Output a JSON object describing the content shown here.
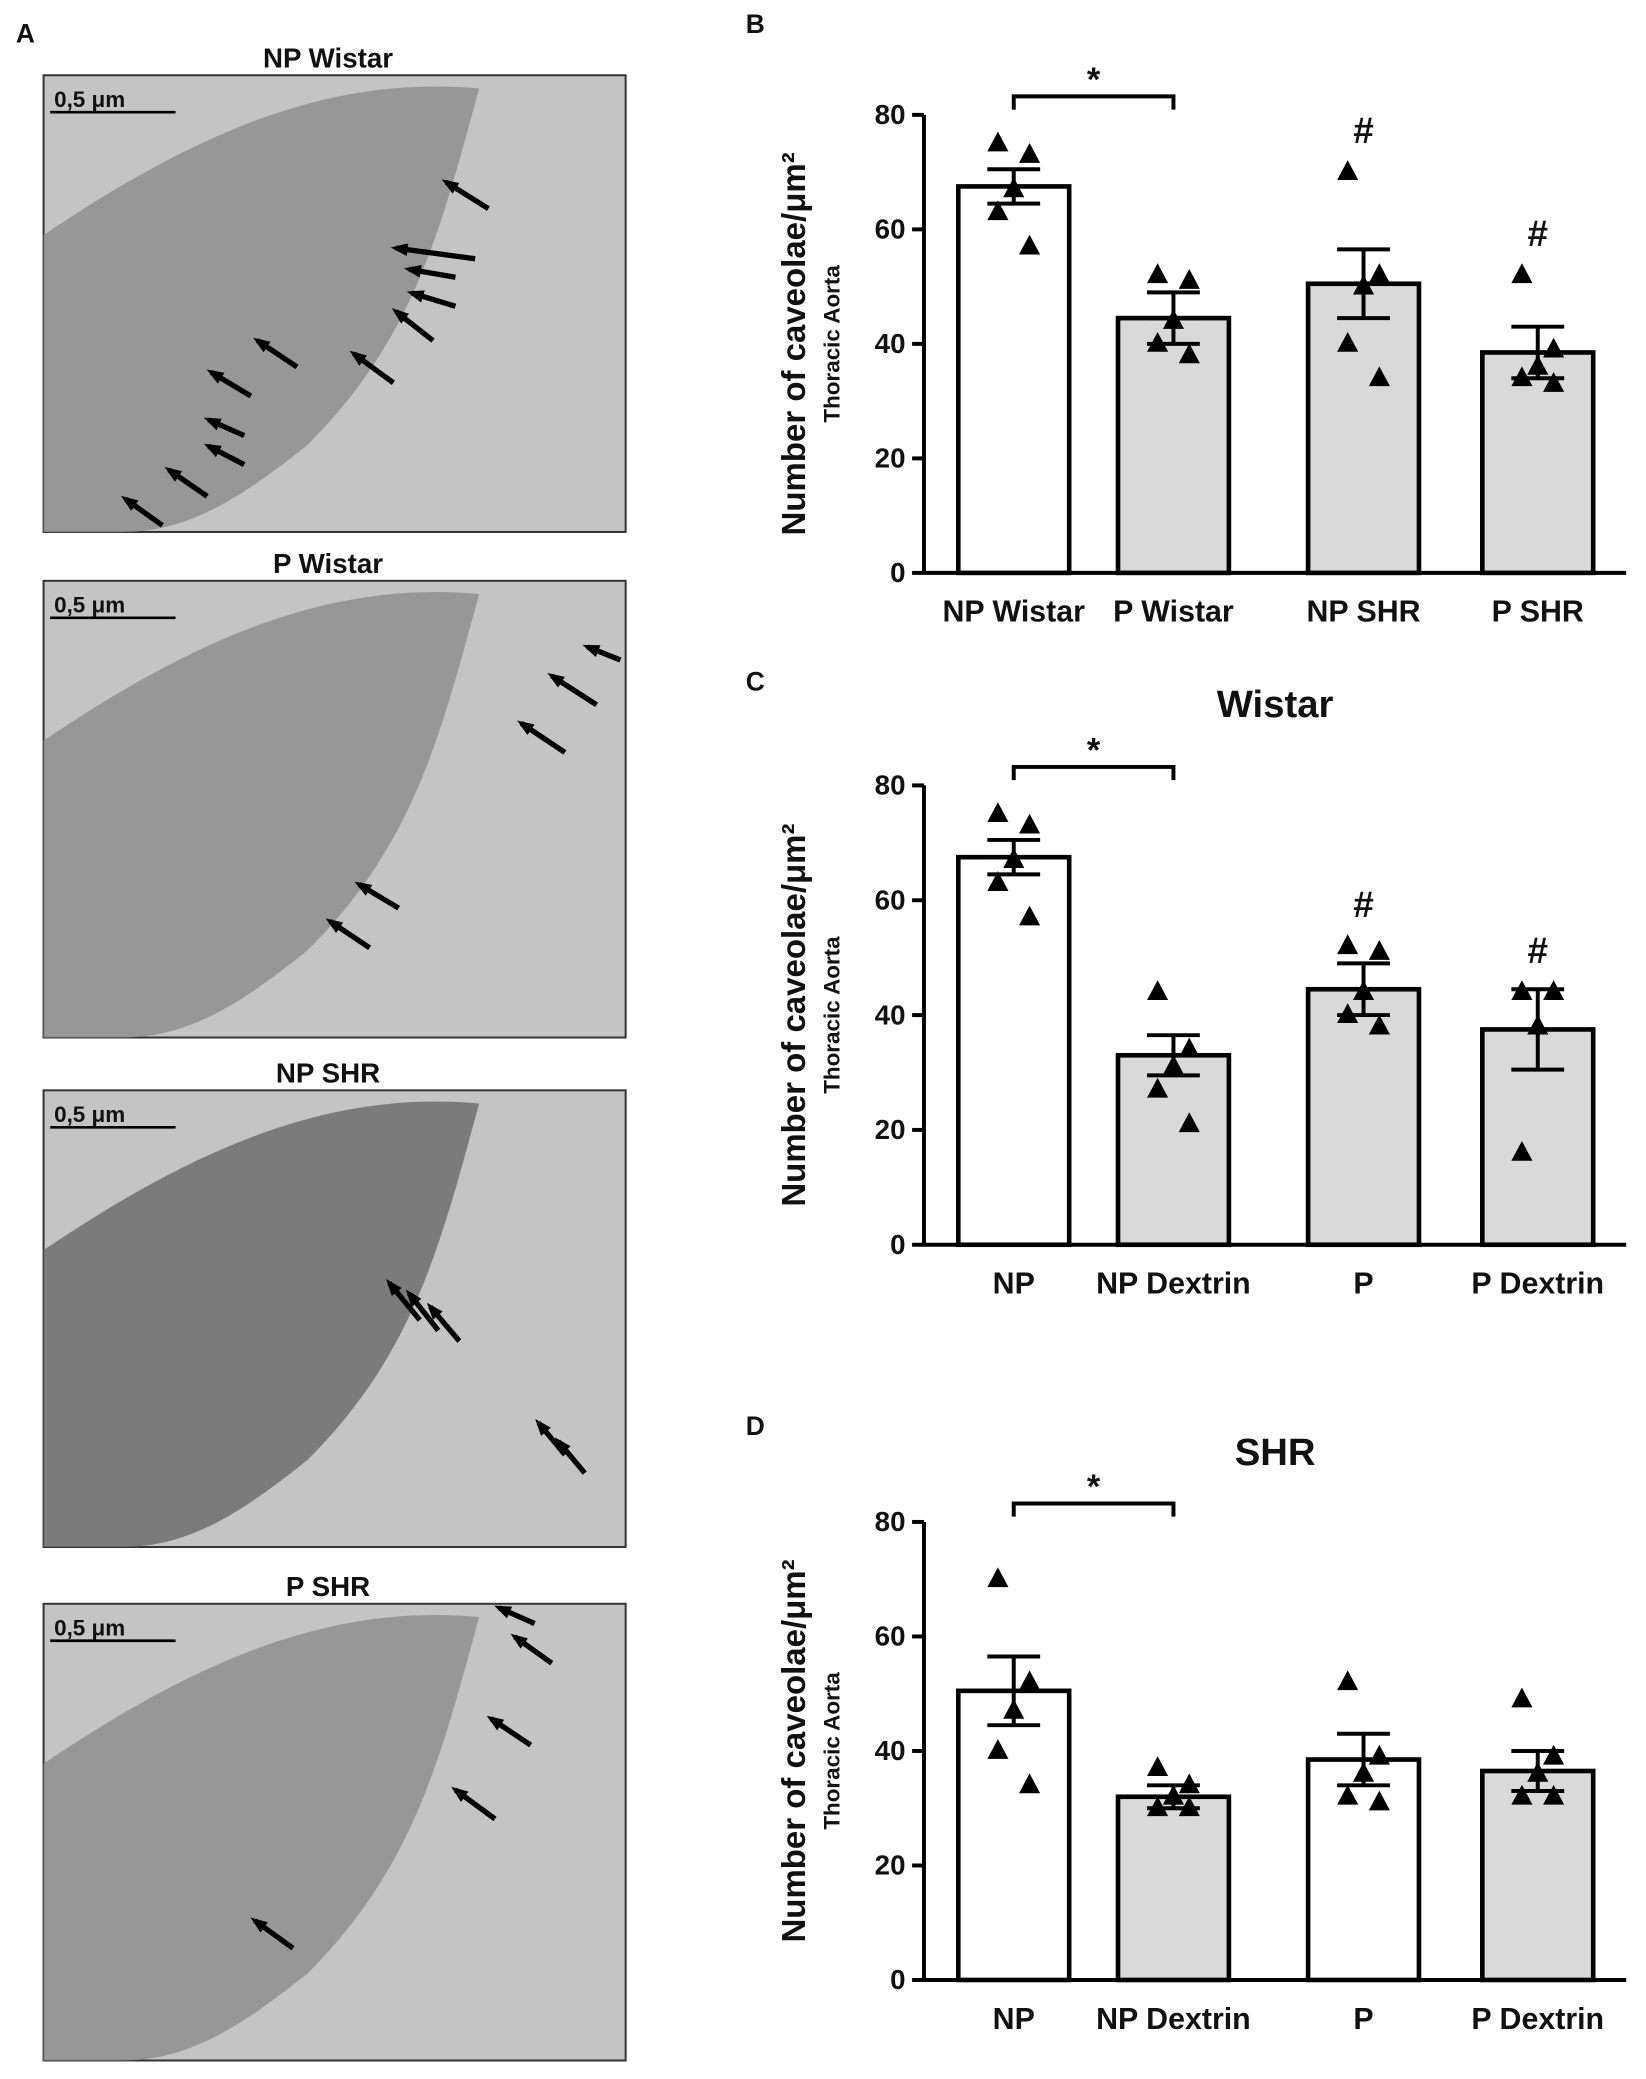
{
  "panel_a": {
    "label": "A",
    "images": [
      {
        "title": "NP Wistar",
        "scale_bar": "0,5 μm"
      },
      {
        "title": "P Wistar",
        "scale_bar": "0,5 μm"
      },
      {
        "title": "NP SHR",
        "scale_bar": "0,5 μm"
      },
      {
        "title": "P SHR",
        "scale_bar": "0,5 μm"
      }
    ]
  },
  "chart_data": [
    {
      "type": "bar",
      "panel_label": "B",
      "ylabel": "Number of caveolae/μm²",
      "ylabel_sub": "Thoracic Aorta",
      "categories": [
        "NP Wistar",
        "P Wistar",
        "NP SHR",
        "P SHR"
      ],
      "values": [
        67.5,
        44.5,
        50.5,
        38.5
      ],
      "errors": [
        3,
        4.5,
        6,
        4.5
      ],
      "points": [
        [
          75,
          73,
          67,
          63,
          57
        ],
        [
          52,
          51,
          44,
          40,
          38
        ],
        [
          70,
          52,
          50,
          40,
          34
        ],
        [
          52,
          39,
          36,
          34,
          33
        ]
      ],
      "colors": [
        "#ffffff",
        "#d9d9d9",
        "#d9d9d9",
        "#d9d9d9"
      ],
      "ylim": [
        0,
        80
      ],
      "yticks": [
        0,
        20,
        40,
        60,
        80
      ],
      "bracket_label": "*",
      "marks": [
        null,
        null,
        "#",
        "#"
      ]
    },
    {
      "type": "bar",
      "panel_label": "C",
      "title": "Wistar",
      "ylabel": "Number of caveolae/μm²",
      "ylabel_sub": "Thoracic Aorta",
      "categories": [
        "NP",
        "NP Dextrin",
        "P",
        "P Dextrin"
      ],
      "values": [
        67.5,
        33,
        44.5,
        37.5
      ],
      "errors": [
        3,
        3.5,
        4.5,
        7
      ],
      "points": [
        [
          75,
          73,
          67,
          63,
          57
        ],
        [
          44,
          34,
          31,
          27,
          21
        ],
        [
          52,
          51,
          44,
          40,
          38
        ],
        [
          44,
          44,
          38,
          16
        ]
      ],
      "colors": [
        "#ffffff",
        "#d9d9d9",
        "#d9d9d9",
        "#d9d9d9"
      ],
      "ylim": [
        0,
        80
      ],
      "yticks": [
        0,
        20,
        40,
        60,
        80
      ],
      "bracket_label": "*",
      "marks": [
        null,
        null,
        "#",
        "#"
      ]
    },
    {
      "type": "bar",
      "panel_label": "D",
      "title": "SHR",
      "ylabel": "Number of caveolae/μm²",
      "ylabel_sub": "Thoracic Aorta",
      "categories": [
        "NP",
        "NP Dextrin",
        "P",
        "P Dextrin"
      ],
      "values": [
        50.5,
        32,
        38.5,
        36.5
      ],
      "errors": [
        6,
        2,
        4.5,
        3.5
      ],
      "points": [
        [
          70,
          52,
          47,
          40,
          34
        ],
        [
          37,
          34,
          32,
          30,
          30
        ],
        [
          52,
          39,
          36,
          32,
          31
        ],
        [
          49,
          39,
          36,
          32,
          32
        ]
      ],
      "colors": [
        "#ffffff",
        "#d9d9d9",
        "#ffffff",
        "#d9d9d9"
      ],
      "ylim": [
        0,
        80
      ],
      "yticks": [
        0,
        20,
        40,
        60,
        80
      ],
      "bracket_label": "*"
    }
  ]
}
